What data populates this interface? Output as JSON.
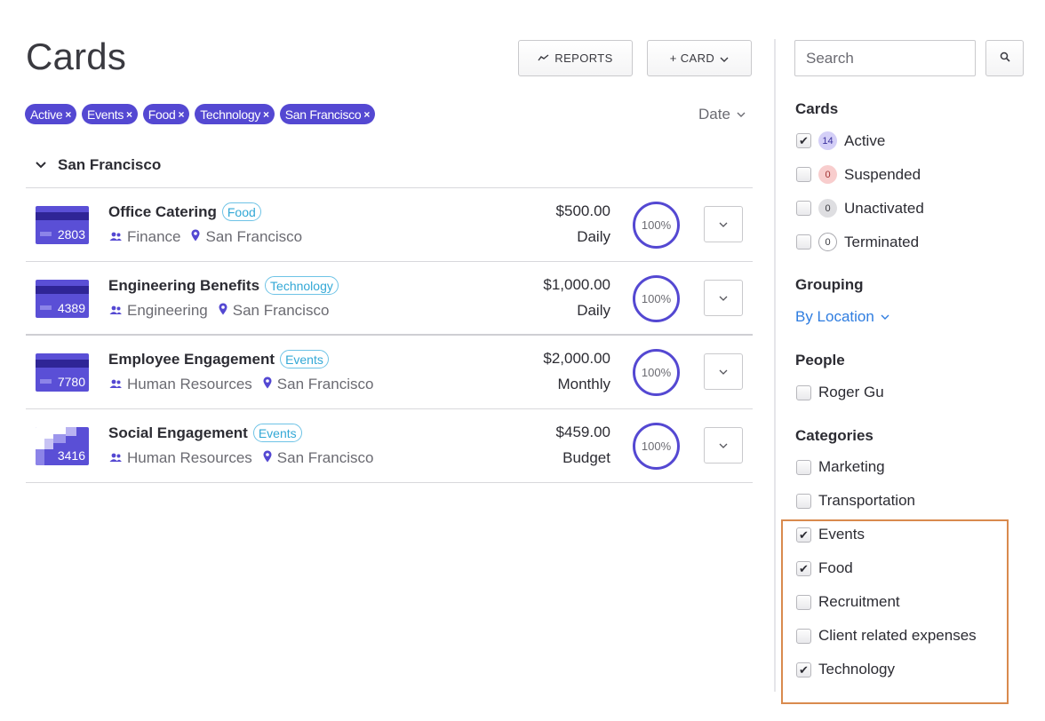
{
  "page": {
    "title": "Cards"
  },
  "toolbar": {
    "reports_label": "REPORTS",
    "card_label": "+ CARD"
  },
  "filters": {
    "chips": [
      {
        "label": "Active"
      },
      {
        "label": "Events"
      },
      {
        "label": "Food"
      },
      {
        "label": "Technology"
      },
      {
        "label": "San Francisco"
      }
    ],
    "sort_label": "Date"
  },
  "group": {
    "title": "San Francisco"
  },
  "cards": [
    {
      "name": "Office Catering",
      "tag": "Food",
      "department": "Finance",
      "location": "San Francisco",
      "amount": "$500.00",
      "frequency": "Daily",
      "usage": "100%",
      "last4": "2803"
    },
    {
      "name": "Engineering Benefits",
      "tag": "Technology",
      "department": "Engineering",
      "location": "San Francisco",
      "amount": "$1,000.00",
      "frequency": "Daily",
      "usage": "100%",
      "last4": "4389"
    },
    {
      "name": "Employee Engagement",
      "tag": "Events",
      "department": "Human Resources",
      "location": "San Francisco",
      "amount": "$2,000.00",
      "frequency": "Monthly",
      "usage": "100%",
      "last4": "7780"
    },
    {
      "name": "Social Engagement",
      "tag": "Events",
      "department": "Human Resources",
      "location": "San Francisco",
      "amount": "$459.00",
      "frequency": "Budget",
      "usage": "100%",
      "last4": "3416"
    }
  ],
  "sidebar": {
    "search_placeholder": "Search",
    "cards_heading": "Cards",
    "card_status": [
      {
        "label": "Active",
        "count": "14",
        "checked": true
      },
      {
        "label": "Suspended",
        "count": "0",
        "checked": false
      },
      {
        "label": "Unactivated",
        "count": "0",
        "checked": false
      },
      {
        "label": "Terminated",
        "count": "0",
        "checked": false
      }
    ],
    "grouping_heading": "Grouping",
    "grouping_value": "By Location",
    "people_heading": "People",
    "people": [
      {
        "label": "Roger Gu",
        "checked": false
      }
    ],
    "categories_heading": "Categories",
    "categories": [
      {
        "label": "Marketing",
        "checked": false
      },
      {
        "label": "Transportation",
        "checked": false
      },
      {
        "label": "Events",
        "checked": true
      },
      {
        "label": "Food",
        "checked": true
      },
      {
        "label": "Recruitment",
        "checked": false
      },
      {
        "label": "Client related expenses",
        "checked": false
      },
      {
        "label": "Technology",
        "checked": true
      }
    ]
  },
  "colors": {
    "accent": "#5448d2",
    "tag": "#33a8d6",
    "link": "#2f7de0",
    "highlight": "#d98a4e"
  }
}
